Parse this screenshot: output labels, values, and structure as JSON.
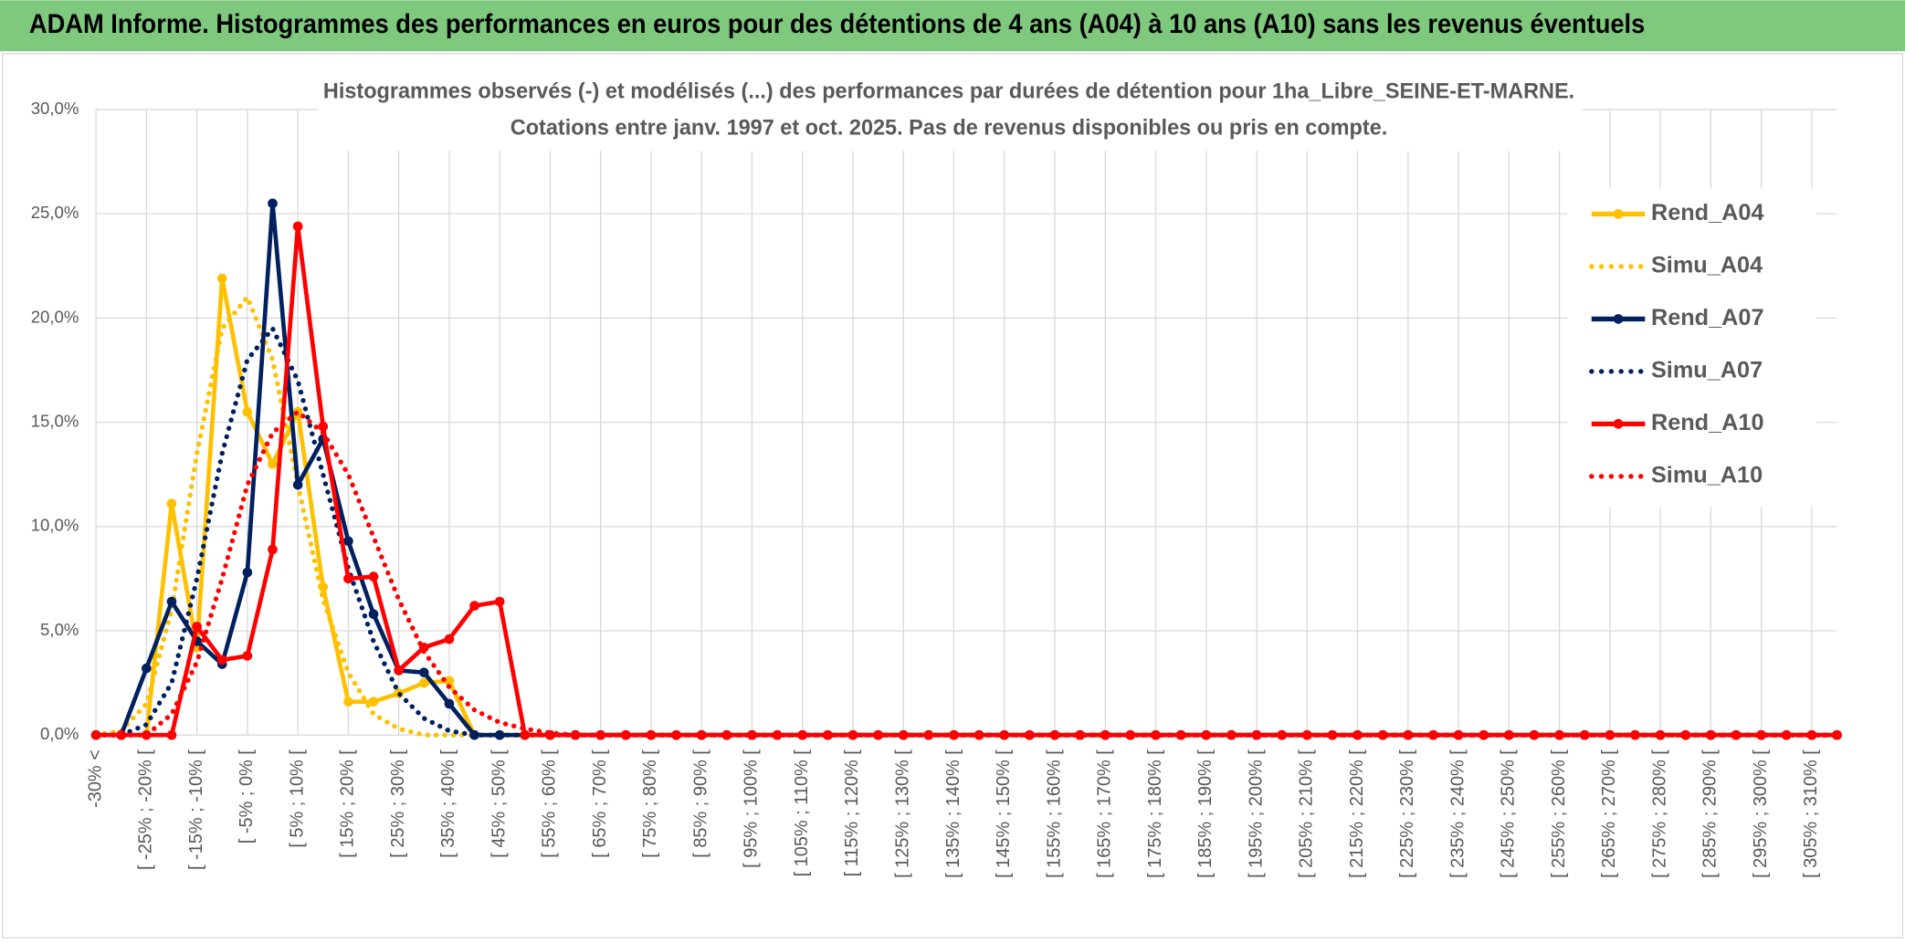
{
  "header": {
    "title": "ADAM Informe. Histogrammes des performances en euros pour des détentions de 4 ans (A04) à 10 ans (A10) sans les revenus éventuels"
  },
  "chart_data": {
    "type": "line",
    "title": "Histogrammes observés (-) et modélisés (...) des performances par durées de détention pour 1ha_Libre_SEINE-ET-MARNE.",
    "subtitle": "Cotations entre janv. 1997 et oct. 2025. Pas de revenus disponibles ou pris en compte.",
    "categories": [
      "-30% <",
      null,
      "[ -25% ; -20% [",
      null,
      "[ -15% ; -10% [",
      null,
      "[ -5% ; 0% [",
      null,
      "[ 5% ; 10% [",
      null,
      "[ 15% ; 20% [",
      null,
      "[ 25% ; 30% [",
      null,
      "[ 35% ; 40% [",
      null,
      "[ 45% ; 50% [",
      null,
      "[ 55% ; 60% [",
      null,
      "[ 65% ; 70% [",
      null,
      "[ 75% ; 80% [",
      null,
      "[ 85% ; 90% [",
      null,
      "[ 95% ; 100% [",
      null,
      "[ 105% ; 110% [",
      null,
      "[ 115% ; 120% [",
      null,
      "[ 125% ; 130% [",
      null,
      "[ 135% ; 140% [",
      null,
      "[ 145% ; 150% [",
      null,
      "[ 155% ; 160% [",
      null,
      "[ 165% ; 170% [",
      null,
      "[ 175% ; 180% [",
      null,
      "[ 185% ; 190% [",
      null,
      "[ 195% ; 200% [",
      null,
      "[ 205% ; 210% [",
      null,
      "[ 215% ; 220% [",
      null,
      "[ 225% ; 230% [",
      null,
      "[ 235% ; 240% [",
      null,
      "[ 245% ; 250% [",
      null,
      "[ 255% ; 260% [",
      null,
      "[ 265% ; 270% [",
      null,
      "[ 275% ; 280% [",
      null,
      "[ 285% ; 290% [",
      null,
      "[ 295% ; 300% [",
      null,
      "[ 305% ; 310% [",
      null
    ],
    "series": [
      {
        "name": "Rend_A04",
        "color": "#FFC000",
        "style": "solid",
        "markers": true,
        "values": [
          0,
          0,
          0,
          11.1,
          4.2,
          21.9,
          15.5,
          13.0,
          15.5,
          7.1,
          1.6,
          1.6,
          2.0,
          2.5,
          2.6,
          0,
          0,
          0,
          0,
          0,
          0,
          0,
          0,
          0,
          0,
          0,
          0,
          0,
          0,
          0,
          0,
          0,
          0,
          0,
          0,
          0,
          0,
          0,
          0,
          0,
          0,
          0,
          0,
          0,
          0,
          0,
          0,
          0,
          0,
          0,
          0,
          0,
          0,
          0,
          0,
          0,
          0,
          0,
          0,
          0,
          0,
          0,
          0,
          0,
          0,
          0,
          0,
          0,
          0,
          0
        ]
      },
      {
        "name": "Simu_A04",
        "color": "#FFC000",
        "style": "dotted",
        "markers": false,
        "values": [
          0,
          0.2,
          1.5,
          6,
          13.5,
          19.5,
          21,
          18,
          12,
          6.5,
          3,
          1,
          0.3,
          0,
          0,
          0,
          0,
          0,
          0,
          0,
          0,
          0,
          0,
          0,
          0,
          0,
          0,
          0,
          0,
          0,
          0,
          0,
          0,
          0,
          0,
          0,
          0,
          0,
          0,
          0,
          0,
          0,
          0,
          0,
          0,
          0,
          0,
          0,
          0,
          0,
          0,
          0,
          0,
          0,
          0,
          0,
          0,
          0,
          0,
          0,
          0,
          0,
          0,
          0,
          0,
          0,
          0,
          0,
          0,
          0
        ]
      },
      {
        "name": "Rend_A07",
        "color": "#002060",
        "style": "solid",
        "markers": true,
        "values": [
          0,
          0,
          3.2,
          6.4,
          4.5,
          3.4,
          7.8,
          25.5,
          12,
          14.2,
          9.3,
          5.8,
          3.1,
          3.0,
          1.5,
          0,
          0,
          0,
          0,
          0,
          0,
          0,
          0,
          0,
          0,
          0,
          0,
          0,
          0,
          0,
          0,
          0,
          0,
          0,
          0,
          0,
          0,
          0,
          0,
          0,
          0,
          0,
          0,
          0,
          0,
          0,
          0,
          0,
          0,
          0,
          0,
          0,
          0,
          0,
          0,
          0,
          0,
          0,
          0,
          0,
          0,
          0,
          0,
          0,
          0,
          0,
          0,
          0,
          0,
          0
        ]
      },
      {
        "name": "Simu_A07",
        "color": "#002060",
        "style": "dotted",
        "markers": false,
        "values": [
          0,
          0,
          0.5,
          2.5,
          7.5,
          13.5,
          18,
          19.5,
          17,
          12.5,
          8,
          4.5,
          2,
          0.8,
          0.2,
          0,
          0,
          0,
          0,
          0,
          0,
          0,
          0,
          0,
          0,
          0,
          0,
          0,
          0,
          0,
          0,
          0,
          0,
          0,
          0,
          0,
          0,
          0,
          0,
          0,
          0,
          0,
          0,
          0,
          0,
          0,
          0,
          0,
          0,
          0,
          0,
          0,
          0,
          0,
          0,
          0,
          0,
          0,
          0,
          0,
          0,
          0,
          0,
          0,
          0,
          0,
          0,
          0,
          0,
          0
        ]
      },
      {
        "name": "Rend_A10",
        "color": "#FF0000",
        "style": "solid",
        "markers": true,
        "values": [
          0,
          0,
          0,
          0,
          5.2,
          3.6,
          3.8,
          8.9,
          24.4,
          14.8,
          7.5,
          7.6,
          3.1,
          4.2,
          4.6,
          6.2,
          6.4,
          0,
          0,
          0,
          0,
          0,
          0,
          0,
          0,
          0,
          0,
          0,
          0,
          0,
          0,
          0,
          0,
          0,
          0,
          0,
          0,
          0,
          0,
          0,
          0,
          0,
          0,
          0,
          0,
          0,
          0,
          0,
          0,
          0,
          0,
          0,
          0,
          0,
          0,
          0,
          0,
          0,
          0,
          0,
          0,
          0,
          0,
          0,
          0,
          0,
          0,
          0,
          0,
          0
        ]
      },
      {
        "name": "Simu_A10",
        "color": "#FF0000",
        "style": "dotted",
        "markers": false,
        "values": [
          0,
          0,
          0,
          1,
          3.5,
          7.5,
          12,
          14.5,
          15.5,
          14.5,
          12.5,
          9.5,
          6.5,
          4,
          2.3,
          1.2,
          0.6,
          0.3,
          0.1,
          0,
          0,
          0,
          0,
          0,
          0,
          0,
          0,
          0,
          0,
          0,
          0,
          0,
          0,
          0,
          0,
          0,
          0,
          0,
          0,
          0,
          0,
          0,
          0,
          0,
          0,
          0,
          0,
          0,
          0,
          0,
          0,
          0,
          0,
          0,
          0,
          0,
          0,
          0,
          0,
          0,
          0,
          0,
          0,
          0,
          0,
          0,
          0,
          0,
          0,
          0
        ]
      }
    ],
    "ylim": [
      0,
      30
    ],
    "yticks": [
      {
        "value": 0,
        "label": "0,0%"
      },
      {
        "value": 5,
        "label": "5,0%"
      },
      {
        "value": 10,
        "label": "10,0%"
      },
      {
        "value": 15,
        "label": "15,0%"
      },
      {
        "value": 20,
        "label": "20,0%"
      },
      {
        "value": 25,
        "label": "25,0%"
      },
      {
        "value": 30,
        "label": "30,0%"
      }
    ],
    "grid": true,
    "legend": "right"
  }
}
